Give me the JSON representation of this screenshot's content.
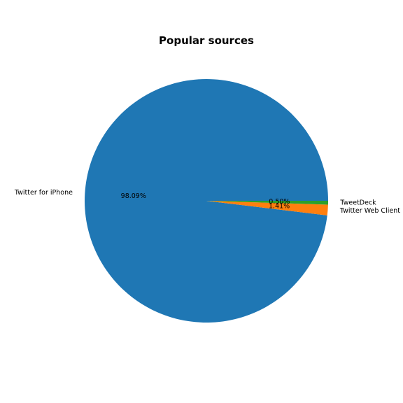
{
  "chart_data": {
    "type": "pie",
    "title": "Popular sources",
    "slices": [
      {
        "label": "Twitter for iPhone",
        "value": 98.09,
        "pct_label": "98.09%",
        "color": "#1f77b4"
      },
      {
        "label": "Twitter Web Client",
        "value": 1.41,
        "pct_label": "1.41%",
        "color": "#ff7f0e"
      },
      {
        "label": "TweetDeck",
        "value": 0.5,
        "pct_label": "0.50%",
        "color": "#2ca02c"
      }
    ]
  }
}
